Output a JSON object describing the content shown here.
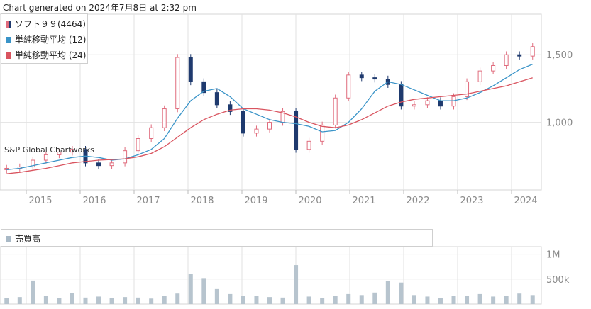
{
  "header": {
    "title": "Chart generated on 2024年7月8日 at 2:32 pm"
  },
  "watermark": "S&P Global Chartworks",
  "legend": {
    "items": [
      {
        "label": "ソフト９９(4464)",
        "color": "#1f3a6e",
        "color2": "#e06c7d"
      },
      {
        "label": "単純移動平均 (12)",
        "color": "#3a94c8"
      },
      {
        "label": "単純移動平均 (24)",
        "color": "#d9545f"
      }
    ]
  },
  "volume_legend": {
    "label": "売買高",
    "color": "#a9b9c6"
  },
  "colors": {
    "up": "#e06c7d",
    "down": "#1f3a6e",
    "sma12": "#3a94c8",
    "sma24": "#d9545f",
    "volume": "#b7c4ce",
    "grid": "#e2e2e2"
  },
  "chart_data": [
    {
      "type": "candlestick",
      "title": "ソフト９９(4464)",
      "x": [
        "2014-07",
        "2014-10",
        "2015-01",
        "2015-04",
        "2015-07",
        "2015-10",
        "2016-01",
        "2016-04",
        "2016-07",
        "2016-10",
        "2017-01",
        "2017-04",
        "2017-07",
        "2017-10",
        "2018-01",
        "2018-04",
        "2018-07",
        "2018-10",
        "2019-01",
        "2019-04",
        "2019-07",
        "2019-10",
        "2020-01",
        "2020-04",
        "2020-07",
        "2020-10",
        "2021-01",
        "2021-04",
        "2021-07",
        "2021-10",
        "2022-01",
        "2022-04",
        "2022-07",
        "2022-10",
        "2023-01",
        "2023-04",
        "2023-07",
        "2023-10",
        "2024-01",
        "2024-04",
        "2024-07"
      ],
      "close": [
        660,
        670,
        720,
        760,
        780,
        800,
        700,
        680,
        700,
        790,
        880,
        960,
        1100,
        1480,
        1300,
        1220,
        1130,
        1080,
        920,
        950,
        1000,
        1080,
        800,
        860,
        980,
        1180,
        1350,
        1330,
        1320,
        1280,
        1120,
        1130,
        1160,
        1120,
        1190,
        1300,
        1380,
        1420,
        1500,
        1490,
        1560
      ],
      "xticks": [
        "2015",
        "2016",
        "2017",
        "2018",
        "2019",
        "2020",
        "2021",
        "2022",
        "2023",
        "2024"
      ],
      "yticks": [
        1000,
        1500
      ],
      "ytick_labels": [
        "1,000",
        "1,500"
      ],
      "ylim": [
        500,
        1800
      ],
      "series": [
        {
          "name": "単純移動平均 (12)",
          "values": [
            650,
            660,
            680,
            700,
            720,
            740,
            750,
            740,
            720,
            730,
            760,
            800,
            880,
            1030,
            1160,
            1230,
            1250,
            1190,
            1100,
            1060,
            1020,
            1000,
            990,
            970,
            930,
            940,
            1000,
            1100,
            1230,
            1300,
            1280,
            1240,
            1200,
            1160,
            1160,
            1180,
            1220,
            1270,
            1330,
            1390,
            1430
          ]
        },
        {
          "name": "単純移動平均 (24)",
          "values": [
            620,
            630,
            645,
            660,
            680,
            700,
            710,
            720,
            725,
            730,
            745,
            770,
            820,
            890,
            960,
            1020,
            1060,
            1090,
            1100,
            1100,
            1090,
            1070,
            1040,
            1000,
            970,
            960,
            980,
            1020,
            1070,
            1120,
            1150,
            1170,
            1180,
            1190,
            1200,
            1210,
            1230,
            1250,
            1270,
            1300,
            1330
          ]
        }
      ]
    },
    {
      "type": "bar",
      "title": "売買高",
      "yticks": [
        500000,
        1000000
      ],
      "ytick_labels": [
        "500k",
        "1M"
      ],
      "ylim": [
        0,
        1150000
      ],
      "values": [
        120000,
        140000,
        470000,
        160000,
        120000,
        220000,
        130000,
        150000,
        120000,
        140000,
        130000,
        110000,
        160000,
        210000,
        600000,
        520000,
        300000,
        200000,
        160000,
        170000,
        140000,
        130000,
        780000,
        150000,
        120000,
        160000,
        200000,
        180000,
        230000,
        460000,
        430000,
        180000,
        150000,
        120000,
        160000,
        170000,
        200000,
        150000,
        170000,
        210000,
        180000
      ]
    }
  ]
}
